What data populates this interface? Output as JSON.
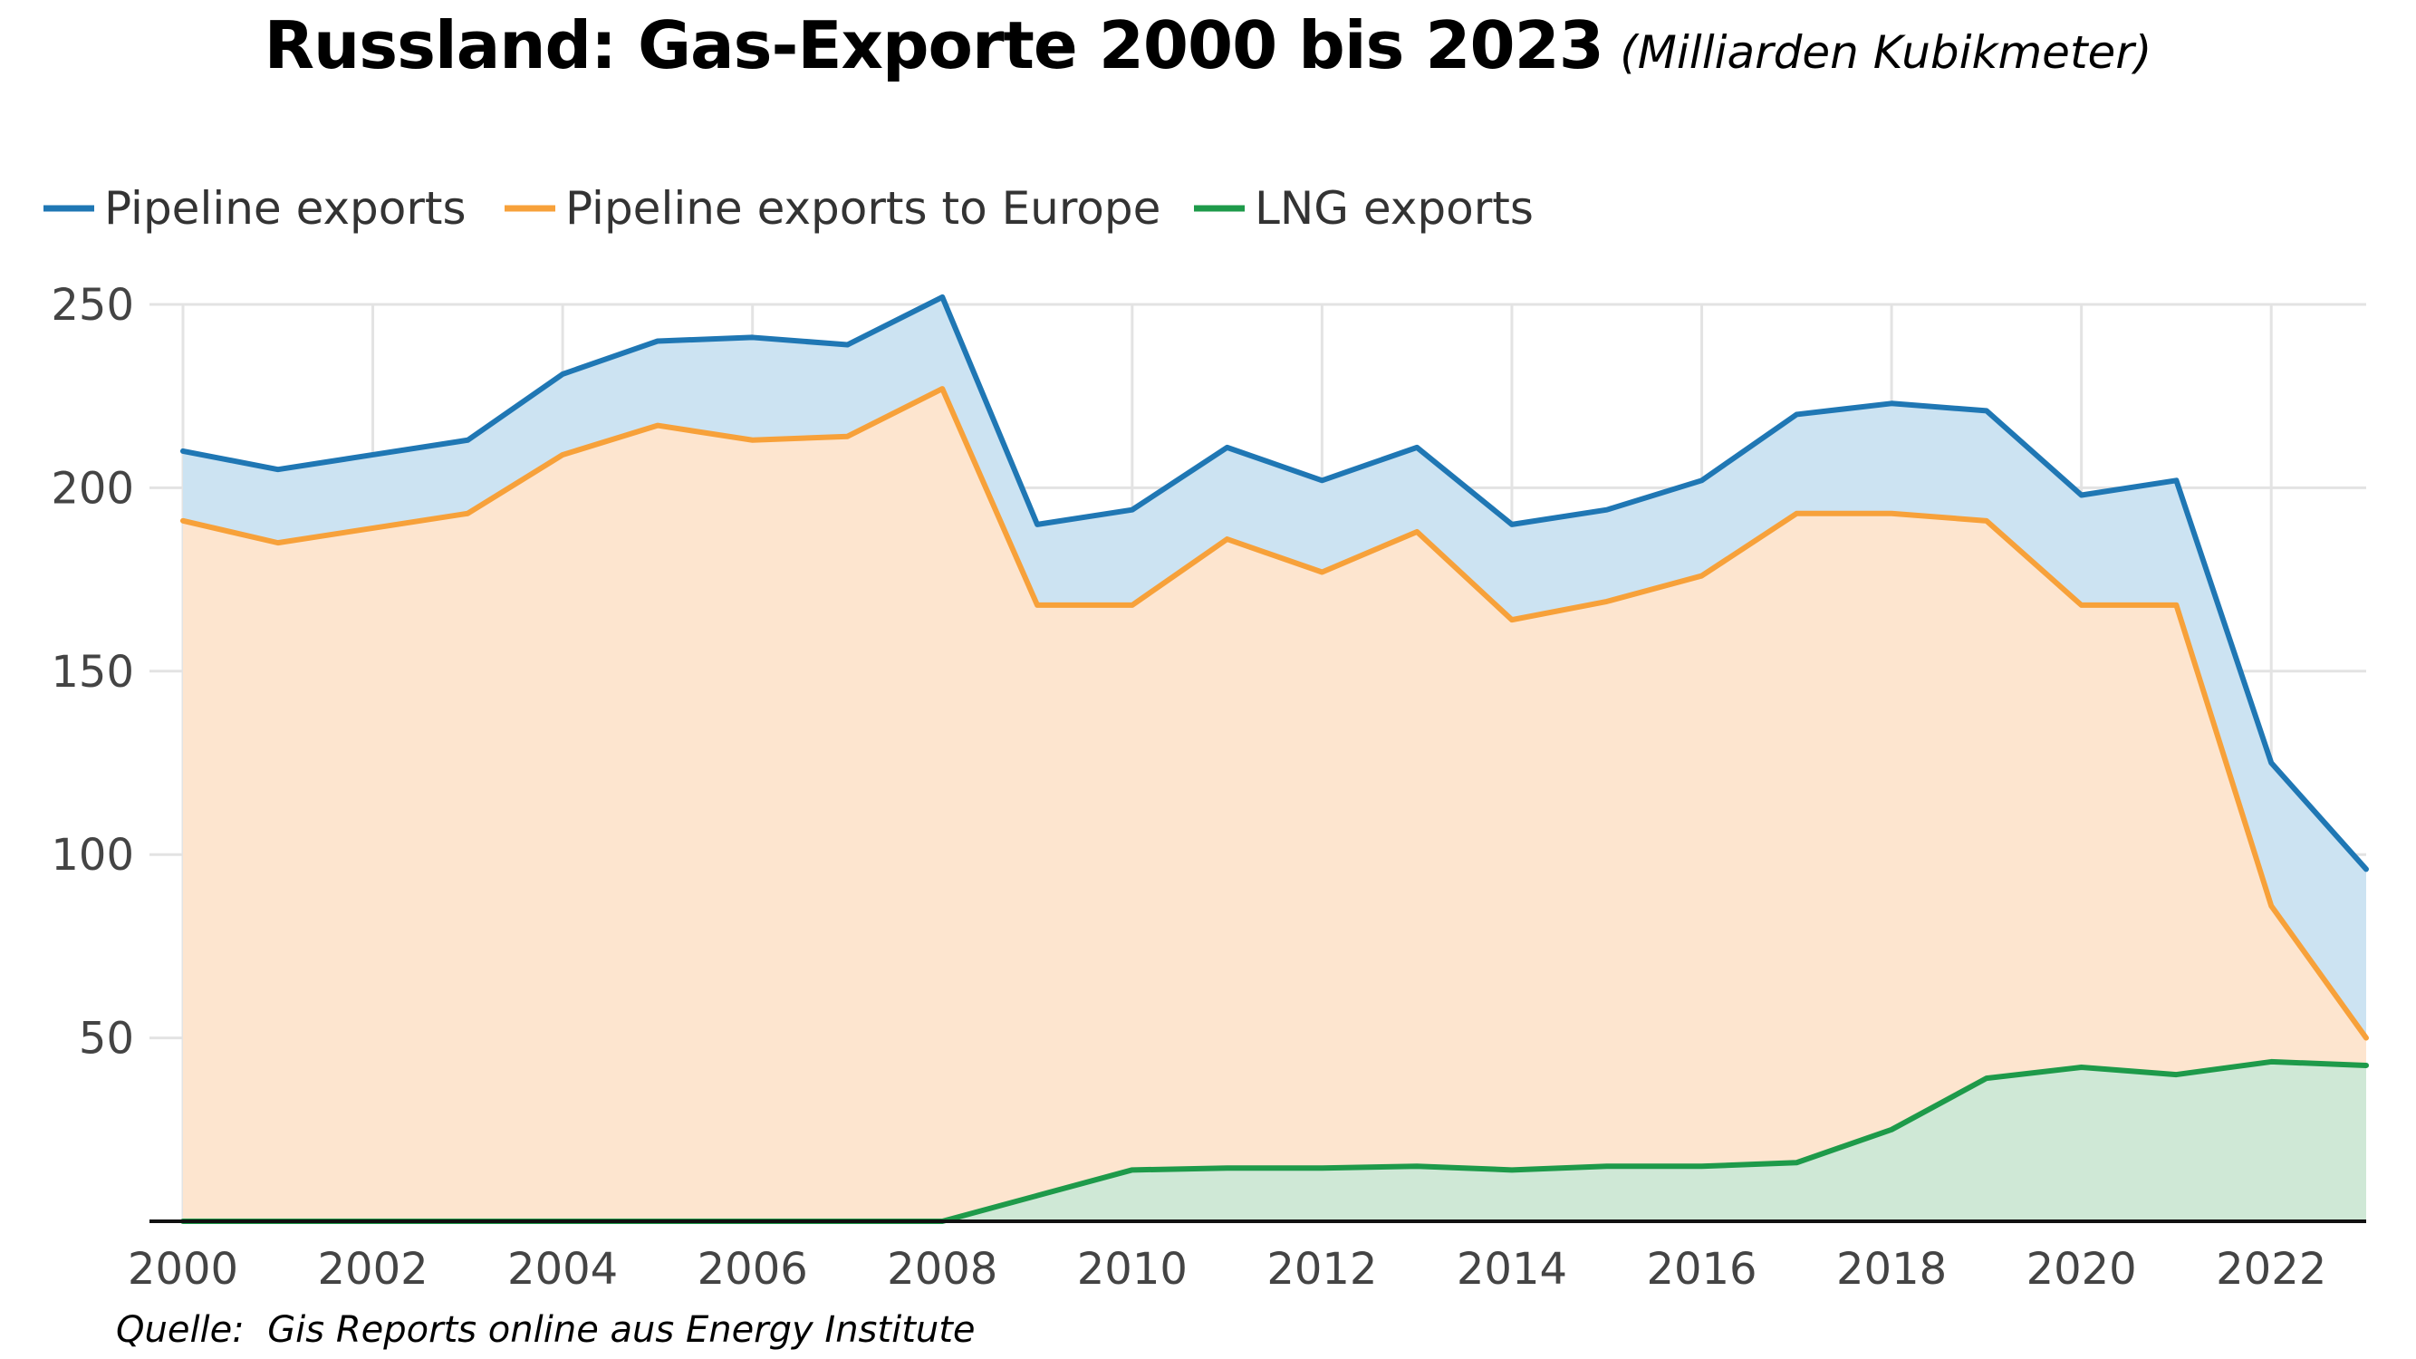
{
  "header": {
    "title": "Russland: Gas-Exporte 2000 bis 2023",
    "subtitle": "(Milliarden Kubikmeter)"
  },
  "source": "Quelle:  Gis Reports online aus Energy Institute",
  "chart_data": {
    "type": "area",
    "title": "Russland: Gas-Exporte 2000 bis 2023",
    "subtitle": "(Milliarden Kubikmeter)",
    "xlabel": "",
    "ylabel": "",
    "x": [
      2000,
      2001,
      2002,
      2003,
      2004,
      2005,
      2006,
      2007,
      2008,
      2009,
      2010,
      2011,
      2012,
      2013,
      2014,
      2015,
      2016,
      2017,
      2018,
      2019,
      2020,
      2021,
      2022,
      2023
    ],
    "xlim": [
      2000,
      2023
    ],
    "ylim": [
      0,
      250
    ],
    "x_ticks": [
      "2000",
      "2002",
      "2004",
      "2006",
      "2008",
      "2010",
      "2012",
      "2014",
      "2016",
      "2018",
      "2020",
      "2022"
    ],
    "y_ticks": [
      "50",
      "100",
      "150",
      "200",
      "250"
    ],
    "grid": true,
    "legend_position": "top-left",
    "series": [
      {
        "name": "Pipeline exports",
        "color": "#1f77b4",
        "fill": "#cce3f2",
        "values": [
          210,
          205,
          209,
          213,
          231,
          240,
          241,
          239,
          252,
          190,
          194,
          211,
          202,
          211,
          190,
          194,
          202,
          220,
          223,
          221,
          198,
          202,
          125,
          96
        ]
      },
      {
        "name": "Pipeline exports to Europe",
        "color": "#f7a13a",
        "fill": "#fde5cf",
        "values": [
          191,
          185,
          189,
          193,
          209,
          217,
          213,
          214,
          227,
          168,
          168,
          186,
          177,
          188,
          164,
          169,
          176,
          193,
          193,
          191,
          168,
          168,
          86,
          50
        ]
      },
      {
        "name": "LNG exports",
        "color": "#1e9a4a",
        "fill": "#cfe8d6",
        "values": [
          0,
          0,
          0,
          0,
          0,
          0,
          0,
          0,
          0,
          7,
          14,
          14.5,
          14.5,
          15,
          14,
          15,
          15,
          16,
          25,
          39,
          42,
          40,
          43.5,
          42.5
        ]
      }
    ]
  }
}
